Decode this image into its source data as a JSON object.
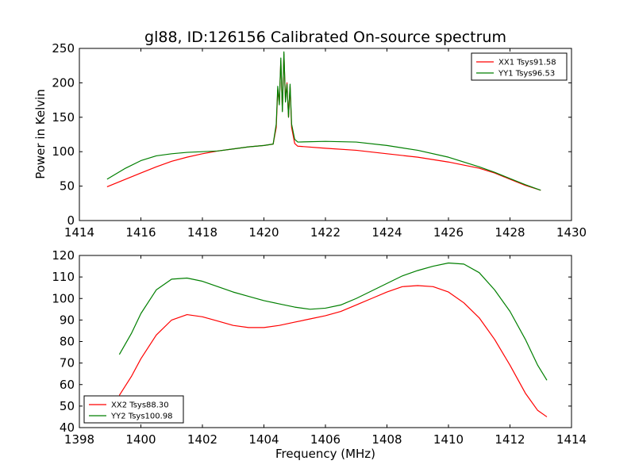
{
  "title": "gl88, ID:126156 Calibrated On-source spectrum",
  "colors": {
    "red": "#ff0000",
    "green": "#007f00"
  },
  "chart_data": [
    {
      "type": "line",
      "ylabel": "Power in Kelvin",
      "xlabel": "",
      "xlim": [
        1414,
        1430
      ],
      "ylim": [
        0,
        250
      ],
      "xticks": [
        1414,
        1416,
        1418,
        1420,
        1422,
        1424,
        1426,
        1428,
        1430
      ],
      "yticks": [
        0,
        50,
        100,
        150,
        200,
        250
      ],
      "legend_position": "top-right",
      "grid": false,
      "series": [
        {
          "name": "XX1 Tsys91.58",
          "color": "#ff0000",
          "points": [
            [
              1414.9,
              49
            ],
            [
              1415.5,
              60
            ],
            [
              1416,
              69
            ],
            [
              1416.5,
              78
            ],
            [
              1417,
              86
            ],
            [
              1417.5,
              92
            ],
            [
              1418,
              97
            ],
            [
              1418.5,
              101
            ],
            [
              1419,
              104
            ],
            [
              1419.5,
              107
            ],
            [
              1420,
              109
            ],
            [
              1420.3,
              111
            ],
            [
              1420.4,
              135
            ],
            [
              1420.45,
              190
            ],
            [
              1420.5,
              170
            ],
            [
              1420.55,
              232
            ],
            [
              1420.6,
              160
            ],
            [
              1420.65,
              242
            ],
            [
              1420.7,
              175
            ],
            [
              1420.75,
              200
            ],
            [
              1420.8,
              150
            ],
            [
              1420.85,
              195
            ],
            [
              1420.9,
              135
            ],
            [
              1421,
              112
            ],
            [
              1421.1,
              108
            ],
            [
              1422,
              105
            ],
            [
              1423,
              102
            ],
            [
              1424,
              97
            ],
            [
              1425,
              92
            ],
            [
              1426,
              85
            ],
            [
              1427,
              76
            ],
            [
              1427.5,
              69
            ],
            [
              1428,
              60
            ],
            [
              1428.5,
              51
            ],
            [
              1429,
              44
            ]
          ]
        },
        {
          "name": "YY1 Tsys96.53",
          "color": "#007f00",
          "points": [
            [
              1414.9,
              60
            ],
            [
              1415.5,
              76
            ],
            [
              1416,
              87
            ],
            [
              1416.5,
              94
            ],
            [
              1417,
              97
            ],
            [
              1417.5,
              99
            ],
            [
              1418,
              100
            ],
            [
              1418.5,
              101
            ],
            [
              1419,
              104
            ],
            [
              1419.5,
              107
            ],
            [
              1420,
              109
            ],
            [
              1420.3,
              111
            ],
            [
              1420.4,
              140
            ],
            [
              1420.45,
              195
            ],
            [
              1420.5,
              168
            ],
            [
              1420.55,
              236
            ],
            [
              1420.6,
              158
            ],
            [
              1420.65,
              245
            ],
            [
              1420.7,
              172
            ],
            [
              1420.75,
              198
            ],
            [
              1420.8,
              150
            ],
            [
              1420.85,
              198
            ],
            [
              1420.9,
              140
            ],
            [
              1421,
              118
            ],
            [
              1421.1,
              114
            ],
            [
              1422,
              115
            ],
            [
              1423,
              114
            ],
            [
              1424,
              109
            ],
            [
              1425,
              102
            ],
            [
              1426,
              92
            ],
            [
              1427,
              78
            ],
            [
              1427.5,
              70
            ],
            [
              1428,
              61
            ],
            [
              1428.5,
              52
            ],
            [
              1429,
              44
            ]
          ]
        }
      ]
    },
    {
      "type": "line",
      "ylabel": "",
      "xlabel": "Frequency (MHz)",
      "xlim": [
        1398,
        1414
      ],
      "ylim": [
        40,
        120
      ],
      "xticks": [
        1398,
        1400,
        1402,
        1404,
        1406,
        1408,
        1410,
        1412,
        1414
      ],
      "yticks": [
        40,
        50,
        60,
        70,
        80,
        90,
        100,
        110,
        120
      ],
      "legend_position": "bottom-left",
      "grid": false,
      "series": [
        {
          "name": "XX2 Tsys88.30",
          "color": "#ff0000",
          "points": [
            [
              1399.3,
              55
            ],
            [
              1399.7,
              64
            ],
            [
              1400,
              72
            ],
            [
              1400.5,
              83
            ],
            [
              1401,
              90
            ],
            [
              1401.5,
              92.5
            ],
            [
              1402,
              91.5
            ],
            [
              1402.5,
              89.5
            ],
            [
              1403,
              87.5
            ],
            [
              1403.5,
              86.5
            ],
            [
              1404,
              86.5
            ],
            [
              1404.5,
              87.5
            ],
            [
              1405,
              89
            ],
            [
              1405.5,
              90.5
            ],
            [
              1406,
              92
            ],
            [
              1406.5,
              94
            ],
            [
              1407,
              97
            ],
            [
              1407.5,
              100
            ],
            [
              1408,
              103
            ],
            [
              1408.5,
              105.5
            ],
            [
              1409,
              106
            ],
            [
              1409.5,
              105.5
            ],
            [
              1410,
              103
            ],
            [
              1410.5,
              98
            ],
            [
              1411,
              91
            ],
            [
              1411.5,
              81
            ],
            [
              1412,
              69
            ],
            [
              1412.5,
              56
            ],
            [
              1412.9,
              48
            ],
            [
              1413.2,
              45
            ]
          ]
        },
        {
          "name": "YY2 Tsys100.98",
          "color": "#007f00",
          "points": [
            [
              1399.3,
              74
            ],
            [
              1399.7,
              84
            ],
            [
              1400,
              93
            ],
            [
              1400.5,
              104
            ],
            [
              1401,
              109
            ],
            [
              1401.5,
              109.5
            ],
            [
              1402,
              108
            ],
            [
              1402.5,
              105.5
            ],
            [
              1403,
              103
            ],
            [
              1403.5,
              101
            ],
            [
              1404,
              99
            ],
            [
              1404.5,
              97.5
            ],
            [
              1405,
              96
            ],
            [
              1405.5,
              95
            ],
            [
              1406,
              95.5
            ],
            [
              1406.5,
              97
            ],
            [
              1407,
              100
            ],
            [
              1407.5,
              103.5
            ],
            [
              1408,
              107
            ],
            [
              1408.5,
              110.5
            ],
            [
              1409,
              113
            ],
            [
              1409.5,
              115
            ],
            [
              1410,
              116.5
            ],
            [
              1410.5,
              116
            ],
            [
              1411,
              112
            ],
            [
              1411.5,
              104
            ],
            [
              1412,
              94
            ],
            [
              1412.5,
              81
            ],
            [
              1412.9,
              69
            ],
            [
              1413.2,
              62
            ]
          ]
        }
      ]
    }
  ]
}
